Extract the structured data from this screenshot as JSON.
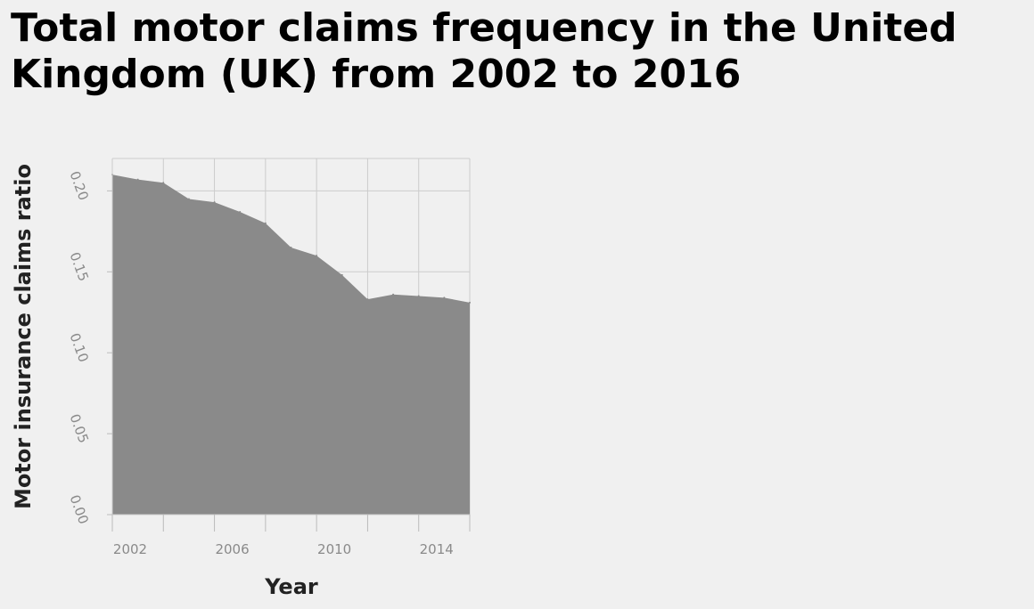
{
  "chart_data": {
    "type": "area",
    "title": "Total motor claims frequency in the United Kingdom (UK) from 2002 to 2016",
    "xlabel": "Year",
    "ylabel": "Motor insurance claims ratio",
    "x": [
      2002,
      2003,
      2004,
      2005,
      2006,
      2007,
      2008,
      2009,
      2010,
      2011,
      2012,
      2013,
      2014,
      2015,
      2016
    ],
    "values": [
      0.21,
      0.207,
      0.205,
      0.195,
      0.193,
      0.187,
      0.18,
      0.165,
      0.16,
      0.148,
      0.133,
      0.136,
      0.135,
      0.134,
      0.131
    ],
    "xlim": [
      2002,
      2016
    ],
    "ylim": [
      0,
      0.22
    ],
    "x_ticks": [
      2002,
      2006,
      2010,
      2014
    ],
    "x_tick_labels": [
      "2002",
      "2006",
      "2010",
      "2014"
    ],
    "y_ticks": [
      0,
      0.05,
      0.1,
      0.15,
      0.2
    ],
    "y_tick_labels": [
      "0.00",
      "0.05",
      "0.10",
      "0.15",
      "0.20"
    ],
    "grid": true,
    "colors": {
      "fill": "#8a8a8a",
      "grid": "#cccccc",
      "background": "#f0f0f0"
    }
  }
}
